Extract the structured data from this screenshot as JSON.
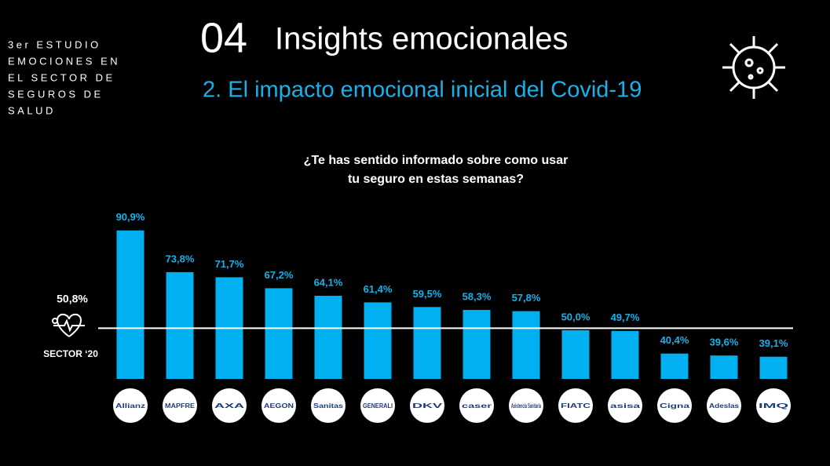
{
  "header": {
    "study_lines": [
      "3er ESTUDIO",
      "EMOCIONES EN",
      "EL SECTOR DE",
      "SEGUROS DE",
      "SALUD"
    ],
    "number": "04",
    "title": "Insights emocionales",
    "subtitle": "2. El impacto emocional inicial del Covid-19"
  },
  "chart_data": {
    "type": "bar",
    "title_lines": [
      "¿Te has sentido informado sobre como usar",
      "tu seguro en estas semanas?"
    ],
    "categories": [
      "Allianz",
      "MAPFRE",
      "AXA",
      "AEGON",
      "Sanitas",
      "GENERALI",
      "DKV",
      "caser",
      "Asistencia Sanitaria",
      "FIATC",
      "asisa",
      "Cigna",
      "Adeslas",
      "IMQ"
    ],
    "values": [
      90.9,
      73.8,
      71.7,
      67.2,
      64.1,
      61.4,
      59.5,
      58.3,
      57.8,
      50.0,
      49.7,
      40.4,
      39.6,
      39.1
    ],
    "value_labels": [
      "90,9%",
      "73,8%",
      "71,7%",
      "67,2%",
      "64,1%",
      "61,4%",
      "59,5%",
      "58,3%",
      "57,8%",
      "50,0%",
      "49,7%",
      "40,4%",
      "39,6%",
      "39,1%"
    ],
    "color": "#00b0f0",
    "ylim": [
      30,
      95
    ],
    "reference": {
      "value": 50.8,
      "label": "50,8%",
      "name": "SECTOR ‘20"
    }
  }
}
